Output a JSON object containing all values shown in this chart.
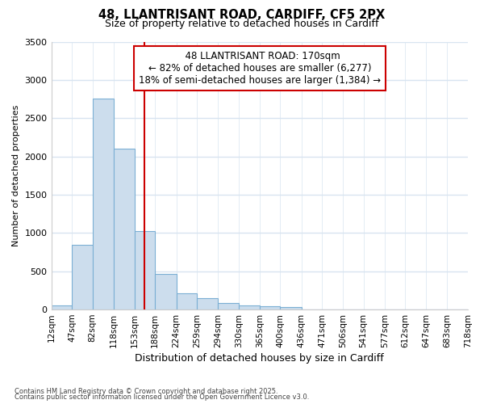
{
  "title_line1": "48, LLANTRISANT ROAD, CARDIFF, CF5 2PX",
  "title_line2": "Size of property relative to detached houses in Cardiff",
  "xlabel": "Distribution of detached houses by size in Cardiff",
  "ylabel": "Number of detached properties",
  "annotation_line1": "  48 LLANTRISANT ROAD: 170sqm",
  "annotation_line2": "← 82% of detached houses are smaller (6,277)",
  "annotation_line3": "18% of semi-detached houses are larger (1,384) →",
  "property_size": 170,
  "bar_color": "#ccdded",
  "bar_edge_color": "#7bafd4",
  "vline_color": "#cc0000",
  "annotation_box_color": "#cc0000",
  "background_color": "#ffffff",
  "grid_color": "#d8e4f0",
  "footnote1": "Contains HM Land Registry data © Crown copyright and database right 2025.",
  "footnote2": "Contains public sector information licensed under the Open Government Licence v3.0.",
  "ylim": [
    0,
    3500
  ],
  "bin_edges": [
    12,
    47,
    82,
    118,
    153,
    188,
    224,
    259,
    294,
    330,
    365,
    400,
    436,
    471,
    506,
    541,
    577,
    612,
    647,
    683,
    718
  ],
  "bin_counts": [
    55,
    850,
    2760,
    2100,
    1020,
    460,
    210,
    145,
    80,
    55,
    40,
    30,
    5,
    2,
    0,
    0,
    0,
    0,
    0,
    0
  ],
  "tick_labels": [
    "12sqm",
    "47sqm",
    "82sqm",
    "118sqm",
    "153sqm",
    "188sqm",
    "224sqm",
    "259sqm",
    "294sqm",
    "330sqm",
    "365sqm",
    "400sqm",
    "436sqm",
    "471sqm",
    "506sqm",
    "541sqm",
    "577sqm",
    "612sqm",
    "647sqm",
    "683sqm",
    "718sqm"
  ]
}
